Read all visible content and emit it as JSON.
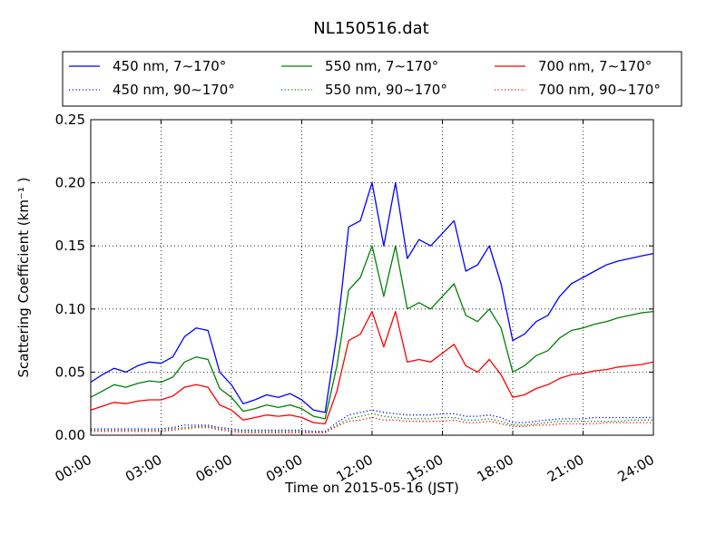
{
  "chart_data": {
    "type": "line",
    "title": "NL150516.dat",
    "xlabel": "Time on 2015-05-16 (JST)",
    "ylabel": "Scattering Coefficient (km⁻¹ )",
    "x_ticks": [
      "00:00",
      "03:00",
      "06:00",
      "09:00",
      "12:00",
      "15:00",
      "18:00",
      "21:00",
      "24:00"
    ],
    "y_ticks": [
      "0.00",
      "0.05",
      "0.10",
      "0.15",
      "0.20",
      "0.25"
    ],
    "xlim": [
      0,
      24
    ],
    "ylim": [
      0,
      0.25
    ],
    "grid": true,
    "legend_position": "top",
    "x_hours": [
      0,
      0.5,
      1,
      1.5,
      2,
      2.5,
      3,
      3.5,
      4,
      4.5,
      5,
      5.5,
      6,
      6.5,
      7,
      7.5,
      8,
      8.5,
      9,
      9.5,
      10,
      10.5,
      11,
      11.5,
      12,
      12.5,
      13,
      13.5,
      14,
      14.5,
      15,
      15.5,
      16,
      16.5,
      17,
      17.5,
      18,
      18.5,
      19,
      19.5,
      20,
      20.5,
      21,
      21.5,
      22,
      22.5,
      23,
      23.5,
      24
    ],
    "series": [
      {
        "name": "450 nm, 7∼170°",
        "color": "#0000ff",
        "style": "solid",
        "values": [
          0.042,
          0.048,
          0.053,
          0.05,
          0.055,
          0.058,
          0.057,
          0.062,
          0.078,
          0.085,
          0.083,
          0.05,
          0.04,
          0.025,
          0.028,
          0.032,
          0.03,
          0.033,
          0.028,
          0.02,
          0.018,
          0.08,
          0.165,
          0.17,
          0.2,
          0.15,
          0.2,
          0.14,
          0.155,
          0.15,
          0.16,
          0.17,
          0.13,
          0.135,
          0.15,
          0.12,
          0.075,
          0.08,
          0.09,
          0.095,
          0.11,
          0.12,
          0.125,
          0.13,
          0.135,
          0.138,
          0.14,
          0.142,
          0.144
        ]
      },
      {
        "name": "550 nm, 7∼170°",
        "color": "#008000",
        "style": "solid",
        "values": [
          0.03,
          0.035,
          0.04,
          0.038,
          0.041,
          0.043,
          0.042,
          0.046,
          0.058,
          0.062,
          0.06,
          0.037,
          0.03,
          0.019,
          0.021,
          0.024,
          0.022,
          0.024,
          0.021,
          0.015,
          0.013,
          0.055,
          0.115,
          0.125,
          0.15,
          0.11,
          0.15,
          0.1,
          0.105,
          0.1,
          0.11,
          0.12,
          0.095,
          0.09,
          0.1,
          0.085,
          0.05,
          0.055,
          0.063,
          0.067,
          0.077,
          0.083,
          0.085,
          0.088,
          0.09,
          0.093,
          0.095,
          0.097,
          0.098
        ]
      },
      {
        "name": "700 nm, 7∼170°",
        "color": "#ff0000",
        "style": "solid",
        "values": [
          0.02,
          0.023,
          0.026,
          0.025,
          0.027,
          0.028,
          0.028,
          0.031,
          0.038,
          0.04,
          0.038,
          0.024,
          0.02,
          0.012,
          0.014,
          0.016,
          0.015,
          0.016,
          0.014,
          0.01,
          0.009,
          0.035,
          0.075,
          0.08,
          0.098,
          0.07,
          0.098,
          0.058,
          0.06,
          0.058,
          0.065,
          0.072,
          0.055,
          0.05,
          0.06,
          0.048,
          0.03,
          0.032,
          0.037,
          0.04,
          0.045,
          0.048,
          0.049,
          0.051,
          0.052,
          0.054,
          0.055,
          0.056,
          0.058
        ]
      },
      {
        "name": "450 nm, 90∼170°",
        "color": "#0000ff",
        "style": "dotted",
        "values": [
          0.005,
          0.005,
          0.005,
          0.005,
          0.005,
          0.005,
          0.005,
          0.006,
          0.008,
          0.008,
          0.008,
          0.006,
          0.005,
          0.004,
          0.004,
          0.004,
          0.004,
          0.004,
          0.004,
          0.003,
          0.003,
          0.01,
          0.016,
          0.018,
          0.02,
          0.018,
          0.017,
          0.016,
          0.016,
          0.016,
          0.017,
          0.017,
          0.015,
          0.015,
          0.016,
          0.014,
          0.01,
          0.01,
          0.011,
          0.012,
          0.013,
          0.013,
          0.013,
          0.014,
          0.014,
          0.014,
          0.014,
          0.014,
          0.014
        ]
      },
      {
        "name": "550 nm, 90∼170°",
        "color": "#008000",
        "style": "dotted",
        "values": [
          0.004,
          0.004,
          0.004,
          0.004,
          0.004,
          0.004,
          0.004,
          0.005,
          0.006,
          0.007,
          0.007,
          0.005,
          0.004,
          0.003,
          0.003,
          0.003,
          0.003,
          0.003,
          0.003,
          0.002,
          0.002,
          0.008,
          0.013,
          0.015,
          0.017,
          0.015,
          0.014,
          0.013,
          0.013,
          0.013,
          0.014,
          0.014,
          0.012,
          0.012,
          0.013,
          0.011,
          0.008,
          0.008,
          0.009,
          0.01,
          0.011,
          0.011,
          0.011,
          0.011,
          0.011,
          0.011,
          0.012,
          0.012,
          0.012
        ]
      },
      {
        "name": "700 nm, 90∼170°",
        "color": "#ff0000",
        "style": "dotted",
        "values": [
          0.003,
          0.003,
          0.003,
          0.003,
          0.003,
          0.003,
          0.003,
          0.004,
          0.005,
          0.006,
          0.006,
          0.004,
          0.003,
          0.002,
          0.002,
          0.002,
          0.002,
          0.002,
          0.002,
          0.002,
          0.002,
          0.007,
          0.011,
          0.012,
          0.014,
          0.012,
          0.012,
          0.011,
          0.011,
          0.011,
          0.011,
          0.012,
          0.01,
          0.01,
          0.011,
          0.009,
          0.007,
          0.007,
          0.008,
          0.008,
          0.009,
          0.009,
          0.009,
          0.009,
          0.01,
          0.01,
          0.01,
          0.01,
          0.01
        ]
      }
    ]
  }
}
